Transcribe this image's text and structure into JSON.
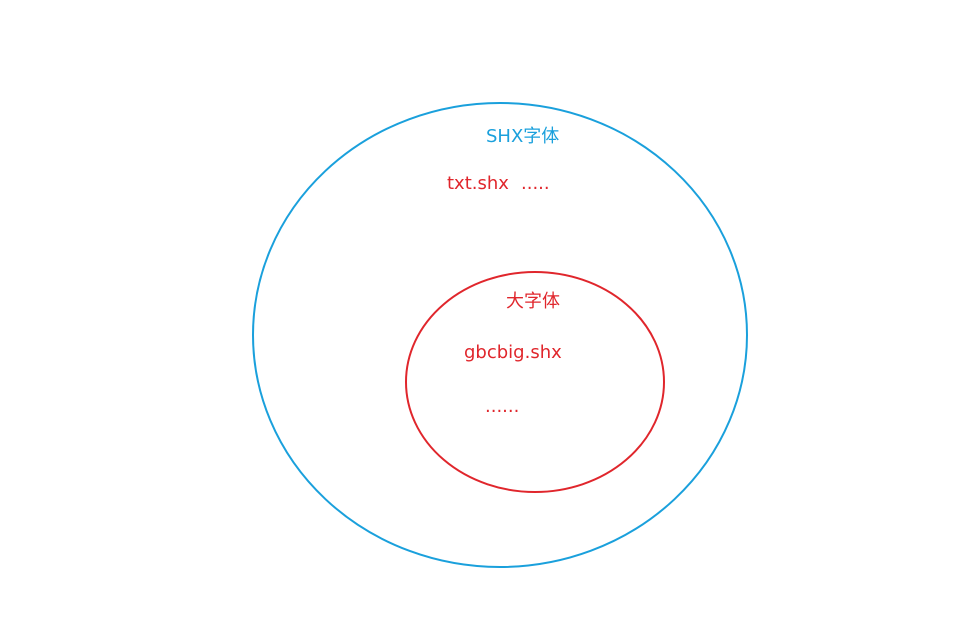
{
  "outer_set": {
    "title": "SHX字体",
    "items": [
      "txt.shx",
      "....."
    ],
    "color": "#1aa0dc"
  },
  "inner_set": {
    "title": "大字体",
    "items": [
      "gbcbig.shx",
      "......"
    ],
    "color": "#e0262c"
  }
}
